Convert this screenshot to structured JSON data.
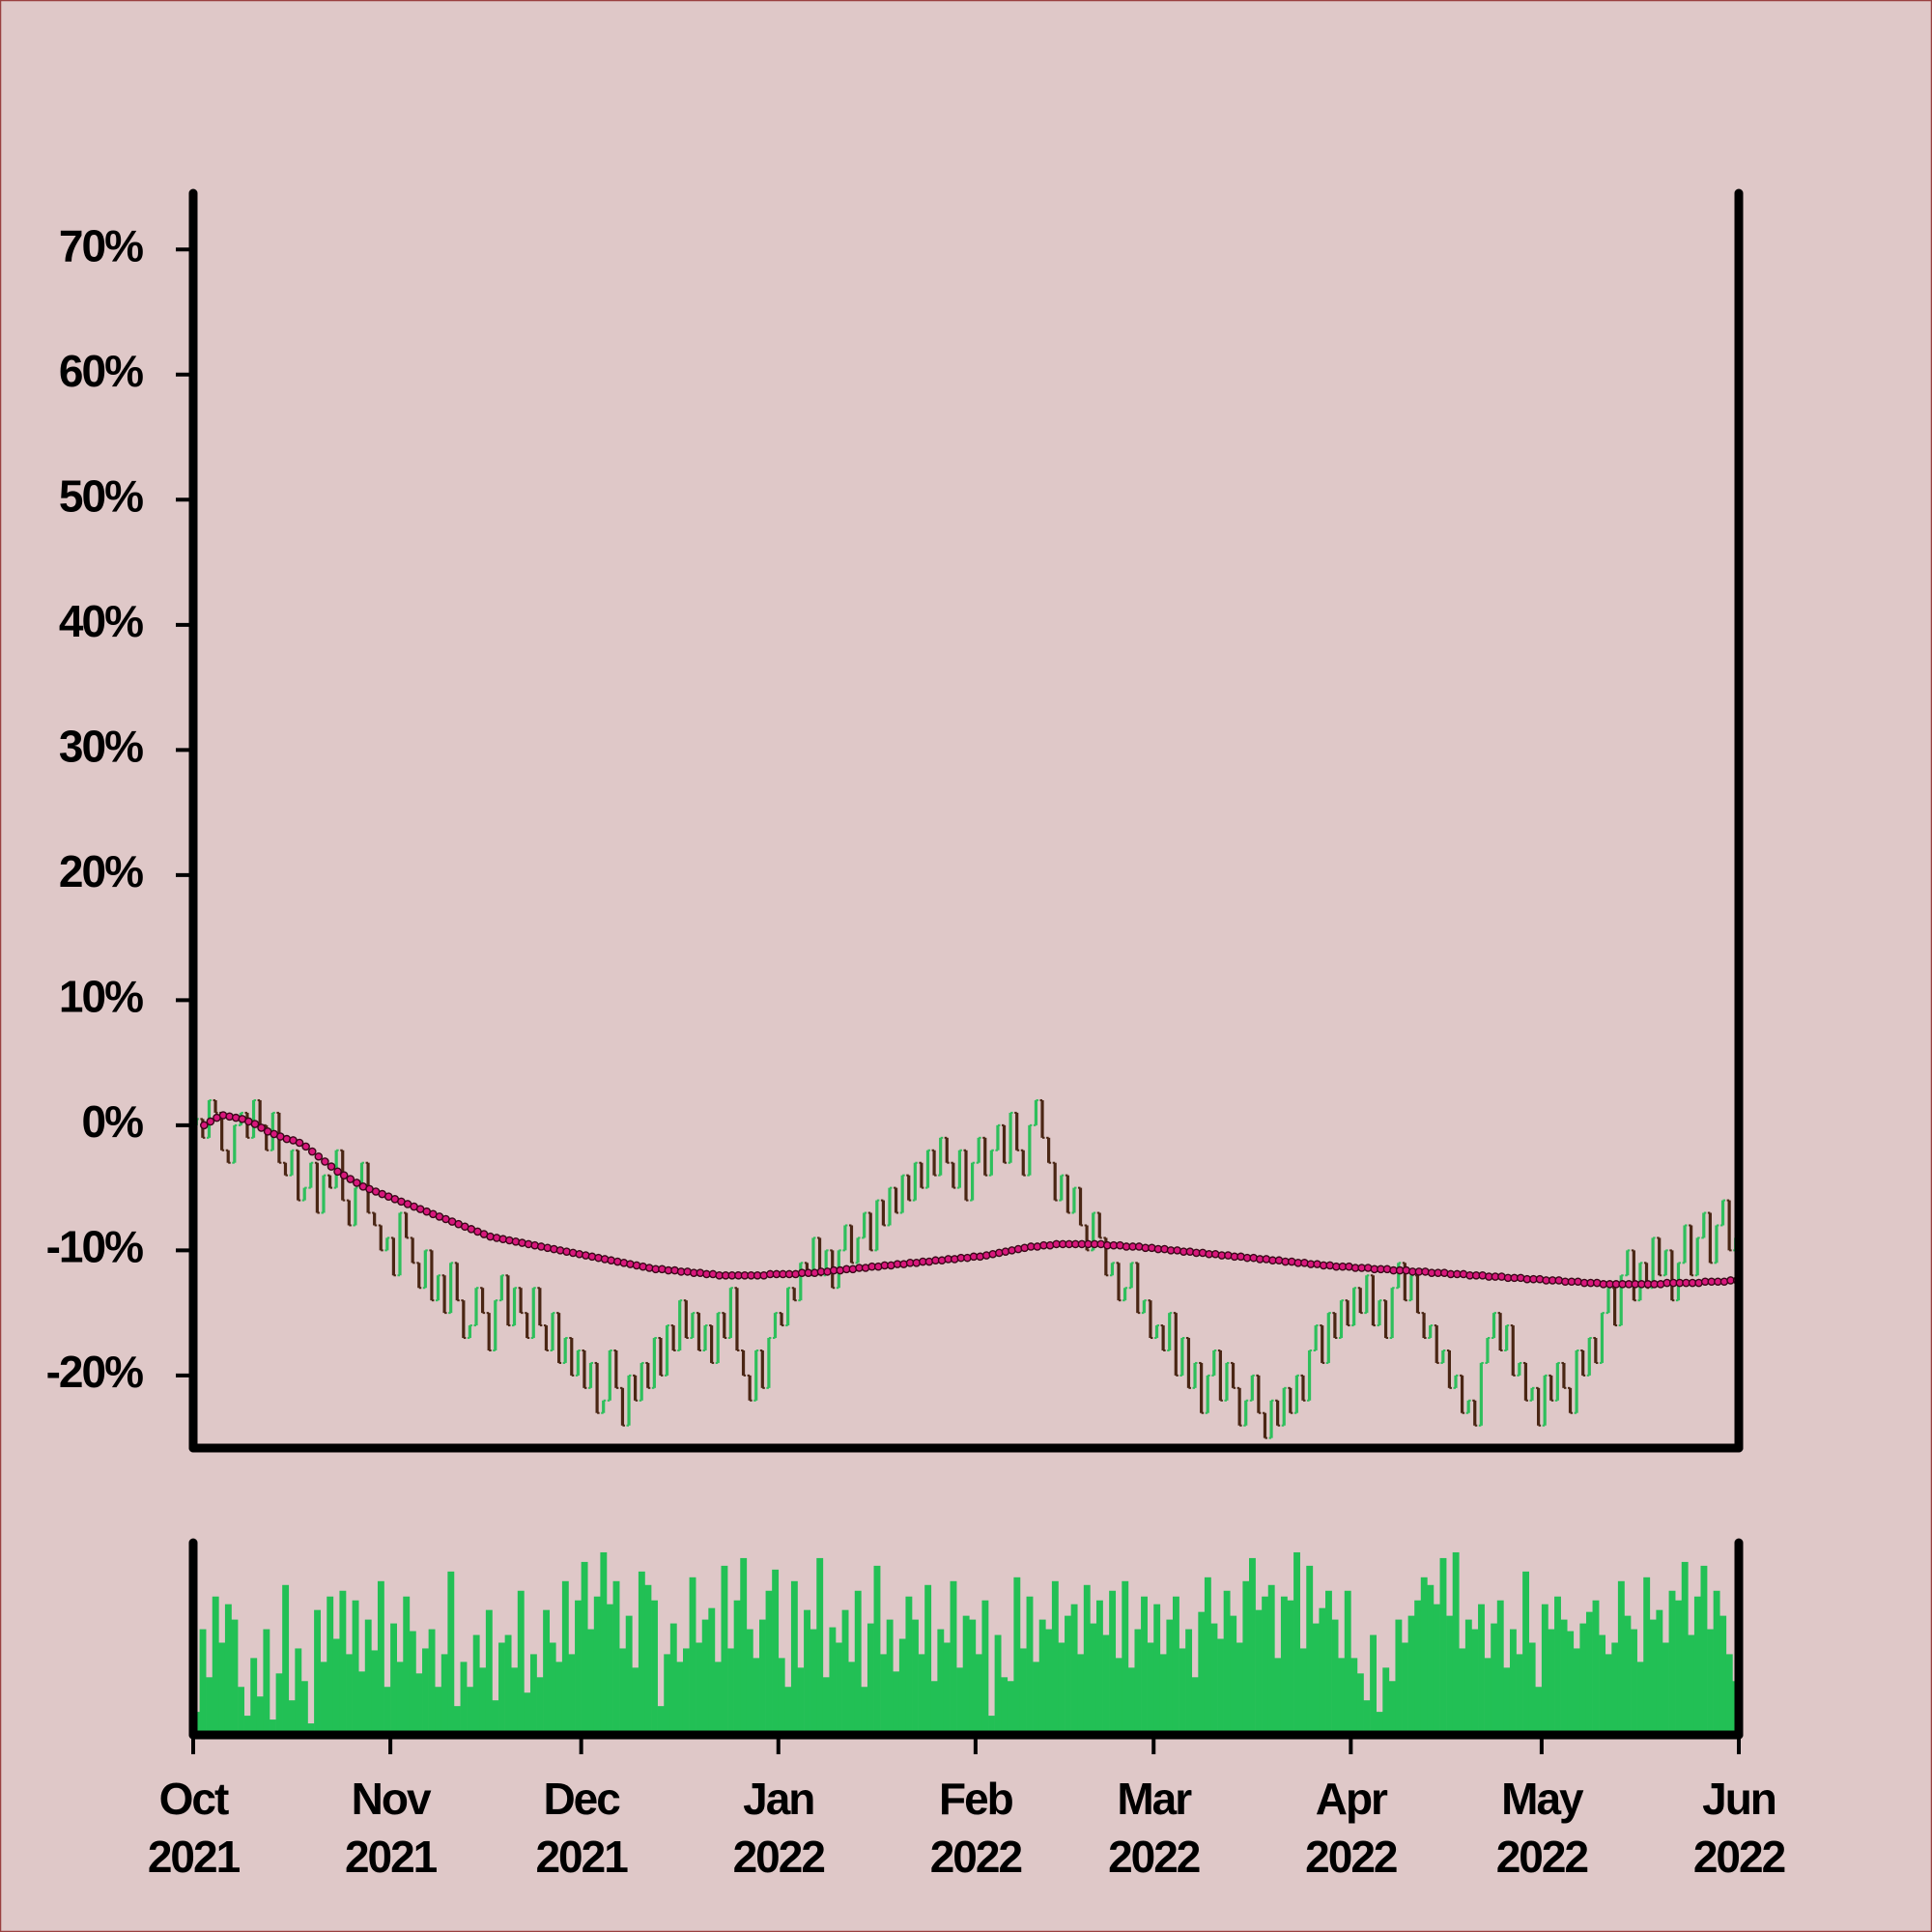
{
  "chart_data": {
    "type": "ohlc",
    "open": [
      0,
      0.5,
      -1,
      2,
      1,
      -2,
      -3,
      0,
      1,
      -1,
      2,
      0,
      -2,
      1,
      -3,
      -4,
      -2,
      -6,
      -5,
      -3,
      -7,
      -4,
      -5,
      -2,
      -6,
      -8,
      -5,
      -3,
      -7,
      -8,
      -10,
      -9,
      -12,
      -7,
      -9,
      -11,
      -13,
      -10,
      -14,
      -12,
      -15,
      -11,
      -14,
      -17,
      -16,
      -13,
      -15,
      -18,
      -14,
      -12,
      -16,
      -13,
      -15,
      -17,
      -13,
      -16,
      -18,
      -15,
      -19,
      -17,
      -20,
      -18,
      -21,
      -19,
      -23,
      -22,
      -18,
      -21,
      -24,
      -20,
      -22,
      -19,
      -21,
      -17,
      -20,
      -16,
      -18,
      -14,
      -17,
      -15,
      -18,
      -16,
      -19,
      -15,
      -17,
      -13,
      -18,
      -20,
      -22,
      -18,
      -21,
      -17,
      -15,
      -16,
      -13,
      -14,
      -11,
      -12,
      -9,
      -12,
      -10,
      -13,
      -10,
      -8,
      -11,
      -9,
      -7,
      -10,
      -6,
      -8,
      -5,
      -7,
      -4,
      -6,
      -3,
      -5,
      -2,
      -4,
      -1,
      -3,
      -5,
      -2,
      -6,
      -3,
      -1,
      -4,
      -2,
      0,
      -3,
      1,
      -2,
      -4,
      0,
      2,
      -1,
      -3,
      -6,
      -4,
      -7,
      -5,
      -8,
      -10,
      -7,
      -9,
      -12,
      -11,
      -14,
      -13,
      -11,
      -15,
      -14,
      -17,
      -16,
      -18,
      -15,
      -20,
      -17,
      -21,
      -19,
      -23,
      -20,
      -18,
      -22,
      -19,
      -21,
      -24,
      -22,
      -20,
      -23,
      -25,
      -22,
      -24,
      -21,
      -23,
      -20,
      -22,
      -18,
      -16,
      -19,
      -15,
      -17,
      -14,
      -16,
      -13,
      -15,
      -12,
      -16,
      -14,
      -17,
      -13,
      -11,
      -14,
      -12,
      -15,
      -17,
      -16,
      -19,
      -18,
      -21,
      -20,
      -23,
      -22,
      -24,
      -19,
      -17,
      -15,
      -18,
      -16,
      -20,
      -19,
      -22,
      -21,
      -24,
      -20,
      -22,
      -19,
      -21,
      -23,
      -18,
      -20,
      -17,
      -19,
      -15,
      -13,
      -16,
      -12,
      -10,
      -14,
      -11,
      -13,
      -9,
      -12,
      -10,
      -14,
      -11,
      -8,
      -12,
      -9,
      -7,
      -11,
      -8,
      -6,
      -10
    ],
    "close": [
      0.5,
      -1,
      2,
      1,
      -2,
      -3,
      0,
      1,
      -1,
      2,
      0,
      -2,
      1,
      -3,
      -4,
      -2,
      -6,
      -5,
      -3,
      -7,
      -4,
      -5,
      -2,
      -6,
      -8,
      -5,
      -3,
      -7,
      -8,
      -10,
      -9,
      -12,
      -7,
      -9,
      -11,
      -13,
      -10,
      -14,
      -12,
      -15,
      -11,
      -14,
      -17,
      -16,
      -13,
      -15,
      -18,
      -14,
      -12,
      -16,
      -13,
      -15,
      -17,
      -13,
      -16,
      -18,
      -15,
      -19,
      -17,
      -20,
      -18,
      -21,
      -19,
      -23,
      -22,
      -18,
      -21,
      -24,
      -20,
      -22,
      -19,
      -21,
      -17,
      -20,
      -16,
      -18,
      -14,
      -17,
      -15,
      -18,
      -16,
      -19,
      -15,
      -17,
      -13,
      -18,
      -20,
      -22,
      -18,
      -21,
      -17,
      -15,
      -16,
      -13,
      -14,
      -11,
      -12,
      -9,
      -12,
      -10,
      -13,
      -10,
      -8,
      -11,
      -9,
      -7,
      -10,
      -6,
      -8,
      -5,
      -7,
      -4,
      -6,
      -3,
      -5,
      -2,
      -4,
      -1,
      -3,
      -5,
      -2,
      -6,
      -3,
      -1,
      -4,
      -2,
      0,
      -3,
      1,
      -2,
      -4,
      0,
      2,
      -1,
      -3,
      -6,
      -4,
      -7,
      -5,
      -8,
      -10,
      -7,
      -9,
      -12,
      -11,
      -14,
      -13,
      -11,
      -15,
      -14,
      -17,
      -16,
      -18,
      -15,
      -20,
      -17,
      -21,
      -19,
      -23,
      -20,
      -18,
      -22,
      -19,
      -21,
      -24,
      -22,
      -20,
      -23,
      -25,
      -22,
      -24,
      -21,
      -23,
      -20,
      -22,
      -18,
      -16,
      -19,
      -15,
      -17,
      -14,
      -16,
      -13,
      -15,
      -12,
      -16,
      -14,
      -17,
      -13,
      -11,
      -14,
      -12,
      -15,
      -17,
      -16,
      -19,
      -18,
      -21,
      -20,
      -23,
      -22,
      -24,
      -19,
      -17,
      -15,
      -18,
      -16,
      -20,
      -19,
      -22,
      -21,
      -24,
      -20,
      -22,
      -19,
      -21,
      -23,
      -18,
      -20,
      -17,
      -19,
      -15,
      -13,
      -16,
      -12,
      -10,
      -14,
      -11,
      -13,
      -9,
      -12,
      -10,
      -14,
      -11,
      -8,
      -12,
      -9,
      -7,
      -11,
      -8,
      -6,
      -10,
      -9
    ],
    "ma": [
      0,
      0.3,
      0.6,
      0.8,
      0.7,
      0.6,
      0.5,
      0.3,
      0.1,
      -0.2,
      -0.5,
      -0.7,
      -0.9,
      -1.1,
      -1.2,
      -1.4,
      -1.7,
      -2.1,
      -2.5,
      -2.9,
      -3.3,
      -3.7,
      -4.0,
      -4.3,
      -4.6,
      -4.9,
      -5.1,
      -5.3,
      -5.5,
      -5.7,
      -5.9,
      -6.1,
      -6.3,
      -6.5,
      -6.7,
      -6.9,
      -7.1,
      -7.3,
      -7.5,
      -7.7,
      -7.9,
      -8.1,
      -8.3,
      -8.5,
      -8.7,
      -8.9,
      -9.0,
      -9.1,
      -9.2,
      -9.3,
      -9.4,
      -9.5,
      -9.6,
      -9.7,
      -9.8,
      -9.9,
      -10.0,
      -10.1,
      -10.2,
      -10.3,
      -10.4,
      -10.5,
      -10.6,
      -10.7,
      -10.8,
      -10.9,
      -11.0,
      -11.1,
      -11.2,
      -11.3,
      -11.4,
      -11.5,
      -11.5,
      -11.6,
      -11.6,
      -11.7,
      -11.7,
      -11.8,
      -11.8,
      -11.9,
      -11.9,
      -12.0,
      -12.0,
      -12.0,
      -12.0,
      -12.0,
      -12.0,
      -12.0,
      -12.0,
      -11.9,
      -11.9,
      -11.9,
      -11.9,
      -11.9,
      -11.8,
      -11.8,
      -11.8,
      -11.7,
      -11.7,
      -11.6,
      -11.6,
      -11.5,
      -11.5,
      -11.4,
      -11.4,
      -11.3,
      -11.3,
      -11.2,
      -11.2,
      -11.1,
      -11.1,
      -11.0,
      -11.0,
      -10.9,
      -10.9,
      -10.8,
      -10.8,
      -10.7,
      -10.7,
      -10.6,
      -10.6,
      -10.5,
      -10.5,
      -10.4,
      -10.3,
      -10.2,
      -10.1,
      -10.0,
      -9.9,
      -9.8,
      -9.7,
      -9.7,
      -9.6,
      -9.6,
      -9.5,
      -9.5,
      -9.5,
      -9.5,
      -9.5,
      -9.5,
      -9.5,
      -9.5,
      -9.6,
      -9.6,
      -9.6,
      -9.7,
      -9.7,
      -9.7,
      -9.8,
      -9.8,
      -9.9,
      -9.9,
      -10.0,
      -10.0,
      -10.1,
      -10.1,
      -10.2,
      -10.2,
      -10.3,
      -10.3,
      -10.4,
      -10.4,
      -10.5,
      -10.5,
      -10.6,
      -10.6,
      -10.7,
      -10.7,
      -10.8,
      -10.8,
      -10.9,
      -10.9,
      -11.0,
      -11.0,
      -11.1,
      -11.1,
      -11.2,
      -11.2,
      -11.3,
      -11.3,
      -11.3,
      -11.4,
      -11.4,
      -11.4,
      -11.5,
      -11.5,
      -11.5,
      -11.6,
      -11.6,
      -11.6,
      -11.7,
      -11.7,
      -11.7,
      -11.8,
      -11.8,
      -11.8,
      -11.9,
      -11.9,
      -11.9,
      -12.0,
      -12.0,
      -12.0,
      -12.1,
      -12.1,
      -12.1,
      -12.2,
      -12.2,
      -12.2,
      -12.3,
      -12.3,
      -12.3,
      -12.4,
      -12.4,
      -12.4,
      -12.5,
      -12.5,
      -12.5,
      -12.6,
      -12.6,
      -12.6,
      -12.7,
      -12.7,
      -12.7,
      -12.7,
      -12.7,
      -12.7,
      -12.7,
      -12.7,
      -12.7,
      -12.7,
      -12.6,
      -12.6,
      -12.6,
      -12.6,
      -12.6,
      -12.6,
      -12.5,
      -12.5,
      -12.5,
      -12.5,
      -12.4,
      -12.4,
      -12.4
    ],
    "volume": [
      12,
      55,
      30,
      72,
      48,
      68,
      60,
      25,
      10,
      40,
      20,
      55,
      8,
      32,
      78,
      18,
      45,
      28,
      6,
      65,
      38,
      72,
      50,
      75,
      42,
      70,
      33,
      60,
      44,
      80,
      25,
      58,
      38,
      72,
      54,
      32,
      45,
      55,
      25,
      42,
      85,
      15,
      38,
      25,
      52,
      35,
      65,
      18,
      48,
      52,
      35,
      75,
      22,
      42,
      30,
      65,
      48,
      38,
      80,
      42,
      70,
      90,
      55,
      72,
      95,
      68,
      80,
      45,
      62,
      35,
      85,
      78,
      70,
      15,
      42,
      58,
      38,
      45,
      82,
      48,
      60,
      66,
      38,
      88,
      45,
      70,
      92,
      55,
      40,
      60,
      75,
      86,
      40,
      25,
      80,
      35,
      65,
      55,
      92,
      30,
      56,
      48,
      65,
      38,
      75,
      25,
      58,
      88,
      42,
      60,
      33,
      50,
      72,
      60,
      42,
      78,
      28,
      55,
      48,
      80,
      35,
      62,
      60,
      42,
      70,
      10,
      52,
      30,
      28,
      82,
      45,
      72,
      38,
      60,
      55,
      80,
      48,
      62,
      68,
      42,
      78,
      58,
      70,
      52,
      75,
      40,
      80,
      35,
      55,
      72,
      48,
      68,
      42,
      60,
      72,
      45,
      55,
      30,
      64,
      82,
      58,
      50,
      75,
      62,
      48,
      80,
      92,
      65,
      72,
      78,
      40,
      72,
      70,
      95,
      45,
      88,
      58,
      66,
      75,
      60,
      40,
      75,
      40,
      32,
      18,
      52,
      12,
      35,
      28,
      60,
      48,
      62,
      70,
      82,
      78,
      68,
      92,
      62,
      95,
      45,
      60,
      55,
      68,
      40,
      58,
      70,
      35,
      55,
      42,
      85,
      48,
      25,
      68,
      55,
      72,
      60,
      54,
      45,
      58,
      64,
      70,
      52,
      42,
      48,
      80,
      62,
      55,
      38,
      82,
      60,
      65,
      48,
      75,
      70,
      90,
      52,
      72,
      88,
      55,
      75,
      62,
      42,
      28
    ],
    "up_color": "#2ebf5c",
    "down_color": "#4a2614",
    "ma_color": "#d8177c",
    "volume_color": "#22c055",
    "xlim": [
      0,
      243
    ],
    "xticks": [
      {
        "value": 0,
        "label": [
          "Oct",
          "2021"
        ]
      },
      {
        "value": 31,
        "label": [
          "Nov",
          "2021"
        ]
      },
      {
        "value": 61,
        "label": [
          "Dec",
          "2021"
        ]
      },
      {
        "value": 92,
        "label": [
          "Jan",
          "2022"
        ]
      },
      {
        "value": 123,
        "label": [
          "Feb",
          "2022"
        ]
      },
      {
        "value": 151,
        "label": [
          "Mar",
          "2022"
        ]
      },
      {
        "value": 182,
        "label": [
          "Apr",
          "2022"
        ]
      },
      {
        "value": 212,
        "label": [
          "May",
          "2022"
        ]
      },
      {
        "value": 243,
        "label": [
          "Jun",
          "2022"
        ]
      }
    ],
    "ylim": [
      -25.8,
      74.5
    ],
    "yticks": [
      {
        "value": -20,
        "label": "-20%"
      },
      {
        "value": -10,
        "label": "-10%"
      },
      {
        "value": 0,
        "label": "0%"
      },
      {
        "value": 10,
        "label": "10%"
      },
      {
        "value": 20,
        "label": "20%"
      },
      {
        "value": 30,
        "label": "30%"
      },
      {
        "value": 40,
        "label": "40%"
      },
      {
        "value": 50,
        "label": "50%"
      },
      {
        "value": 60,
        "label": "60%"
      },
      {
        "value": 70,
        "label": "70%"
      }
    ],
    "volume_ylim": [
      0,
      100
    ]
  }
}
